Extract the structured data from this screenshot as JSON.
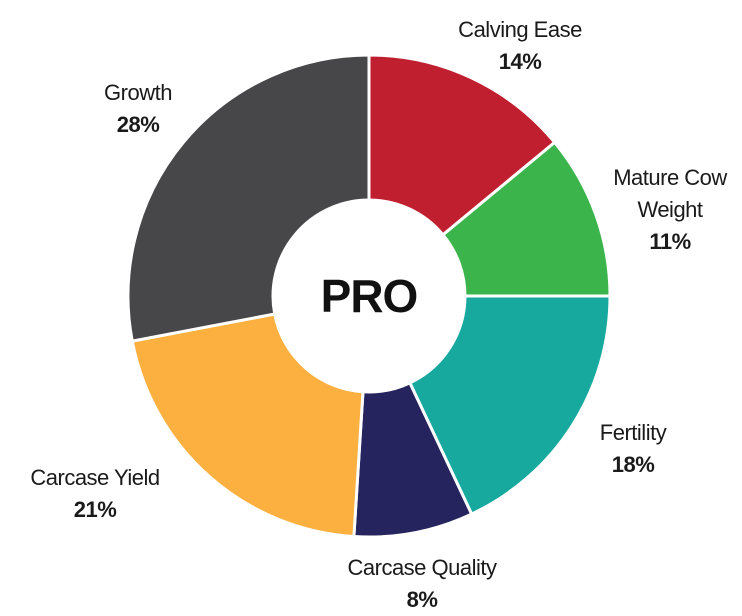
{
  "chart_data": {
    "type": "donut",
    "center_label": "PRO",
    "categories": [
      "Calving Ease",
      "Mature Cow Weight",
      "Fertility",
      "Carcase Quality",
      "Carcase Yield",
      "Growth"
    ],
    "values": [
      14,
      11,
      18,
      8,
      21,
      28
    ],
    "value_labels": [
      "14%",
      "11%",
      "18%",
      "8%",
      "21%",
      "28%"
    ],
    "colors": [
      "#c01f30",
      "#3bb54b",
      "#17a89e",
      "#26245f",
      "#fbb040",
      "#474749"
    ]
  }
}
